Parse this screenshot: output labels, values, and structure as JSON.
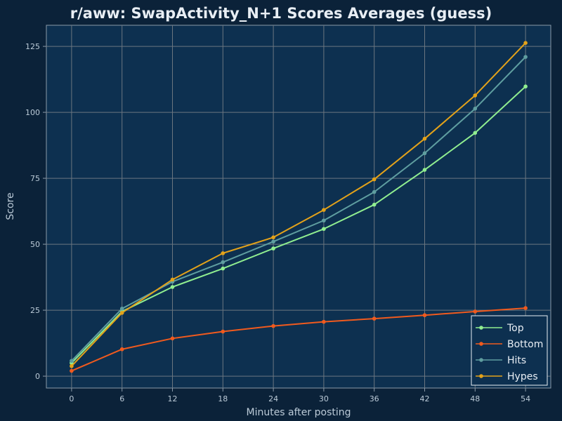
{
  "chart_data": {
    "type": "line",
    "title": "r/aww: SwapActivity_N+1 Scores Averages (guess)",
    "xlabel": "Minutes after posting",
    "ylabel": "Score",
    "x": [
      0,
      6,
      12,
      18,
      24,
      30,
      36,
      42,
      48,
      54
    ],
    "x_ticks": [
      "0",
      "6",
      "12",
      "18",
      "24",
      "30",
      "36",
      "42",
      "48",
      "54"
    ],
    "y_ticks": [
      "0",
      "25",
      "50",
      "75",
      "100",
      "125"
    ],
    "xlim": [
      -3,
      57
    ],
    "ylim": [
      -4.5,
      133
    ],
    "grid": true,
    "legend_position": "bottom-right",
    "series": [
      {
        "name": "Top",
        "color": "#90ee90",
        "values": [
          5,
          24.5,
          33.8,
          40.8,
          48.4,
          55.8,
          65,
          78.2,
          92.2,
          109.8
        ]
      },
      {
        "name": "Bottom",
        "color": "#f05a1e",
        "values": [
          2,
          10.2,
          14.3,
          16.9,
          19,
          20.6,
          21.8,
          23.1,
          24.5,
          25.8
        ]
      },
      {
        "name": "Hits",
        "color": "#5f9ea0",
        "values": [
          5.8,
          25.6,
          35.8,
          43.2,
          51,
          59,
          69.8,
          84.5,
          101.4,
          121
        ]
      },
      {
        "name": "Hypes",
        "color": "#e3a21a",
        "values": [
          3.8,
          24,
          36.6,
          46.6,
          52.6,
          63,
          74.6,
          90,
          106.4,
          126.3
        ]
      }
    ]
  }
}
